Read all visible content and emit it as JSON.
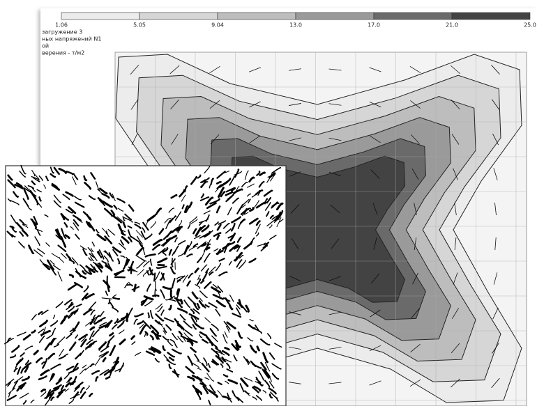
{
  "legend": {
    "ticks": [
      "1.06",
      "5.05",
      "9.04",
      "13.0",
      "17.0",
      "21.0",
      "25.0"
    ]
  },
  "header": {
    "lines": [
      "загружение  3",
      "ных напряжений N1",
      "ой",
      "верения - т/м2"
    ]
  }
}
